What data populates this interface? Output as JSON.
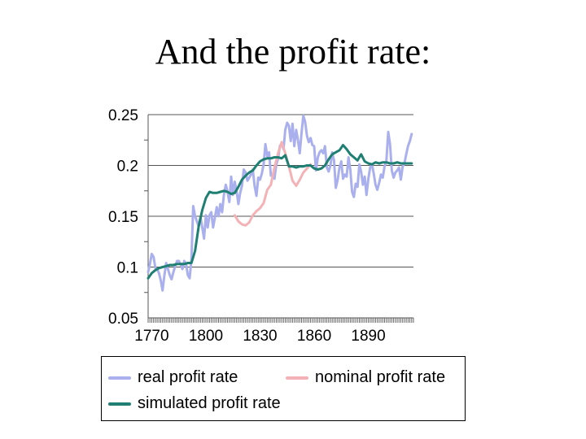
{
  "title": "And the profit rate:",
  "chart_data": {
    "type": "line",
    "title": "",
    "xlabel": "",
    "ylabel": "",
    "xlim": [
      1768,
      1915
    ],
    "ylim": [
      0.05,
      0.25
    ],
    "yticks": [
      0.05,
      0.1,
      0.15,
      0.2,
      0.25
    ],
    "ytick_labels": [
      "0.05",
      "0.1",
      "0.15",
      "0.2",
      "0.25"
    ],
    "xticks": [
      1770,
      1800,
      1830,
      1860,
      1890
    ],
    "xtick_labels": [
      "1770",
      "1800",
      "1830",
      "1860",
      "1890"
    ],
    "grid": "horizontal",
    "legend_position": "bottom",
    "series": [
      {
        "name": "real profit rate",
        "color": "#aab0ee",
        "x": [
          1768,
          1769,
          1770,
          1771,
          1772,
          1773,
          1774,
          1775,
          1776,
          1777,
          1778,
          1779,
          1780,
          1781,
          1782,
          1783,
          1784,
          1785,
          1786,
          1787,
          1788,
          1789,
          1790,
          1791,
          1792,
          1793,
          1794,
          1795,
          1796,
          1797,
          1798,
          1799,
          1800,
          1801,
          1802,
          1803,
          1804,
          1805,
          1806,
          1807,
          1808,
          1809,
          1810,
          1811,
          1812,
          1813,
          1814,
          1815,
          1816,
          1817,
          1818,
          1819,
          1820,
          1821,
          1822,
          1823,
          1824,
          1825,
          1826,
          1827,
          1828,
          1829,
          1830,
          1831,
          1832,
          1833,
          1834,
          1835,
          1836,
          1837,
          1838,
          1839,
          1840,
          1841,
          1842,
          1843,
          1844,
          1845,
          1846,
          1847,
          1848,
          1849,
          1850,
          1851,
          1852,
          1853,
          1854,
          1855,
          1856,
          1857,
          1858,
          1859,
          1860,
          1861,
          1862,
          1863,
          1864,
          1865,
          1866,
          1867,
          1868,
          1869,
          1870,
          1871,
          1872,
          1873,
          1874,
          1875,
          1876,
          1877,
          1878,
          1879,
          1880,
          1881,
          1882,
          1883,
          1884,
          1885,
          1886,
          1887,
          1888,
          1889,
          1890,
          1891,
          1892,
          1893,
          1894,
          1895,
          1896,
          1897,
          1898,
          1899,
          1900,
          1901,
          1902,
          1903,
          1904,
          1905,
          1906,
          1907,
          1908,
          1909,
          1910,
          1911,
          1912,
          1913,
          1914
        ],
        "values": [
          0.095,
          0.103,
          0.113,
          0.11,
          0.099,
          0.098,
          0.094,
          0.087,
          0.077,
          0.092,
          0.104,
          0.098,
          0.092,
          0.088,
          0.095,
          0.101,
          0.106,
          0.106,
          0.103,
          0.098,
          0.106,
          0.103,
          0.092,
          0.089,
          0.108,
          0.16,
          0.15,
          0.145,
          0.14,
          0.149,
          0.139,
          0.128,
          0.151,
          0.139,
          0.151,
          0.154,
          0.139,
          0.149,
          0.159,
          0.15,
          0.162,
          0.154,
          0.171,
          0.181,
          0.174,
          0.164,
          0.189,
          0.171,
          0.184,
          0.175,
          0.162,
          0.173,
          0.18,
          0.196,
          0.193,
          0.185,
          0.188,
          0.191,
          0.196,
          0.18,
          0.17,
          0.188,
          0.186,
          0.192,
          0.201,
          0.221,
          0.209,
          0.213,
          0.19,
          0.191,
          0.187,
          0.201,
          0.207,
          0.219,
          0.222,
          0.216,
          0.235,
          0.242,
          0.239,
          0.224,
          0.241,
          0.219,
          0.235,
          0.225,
          0.212,
          0.232,
          0.249,
          0.243,
          0.229,
          0.223,
          0.227,
          0.22,
          0.219,
          0.195,
          0.208,
          0.213,
          0.215,
          0.212,
          0.219,
          0.198,
          0.194,
          0.2,
          0.213,
          0.205,
          0.178,
          0.186,
          0.198,
          0.204,
          0.187,
          0.191,
          0.189,
          0.208,
          0.196,
          0.174,
          0.169,
          0.182,
          0.179,
          0.201,
          0.194,
          0.181,
          0.189,
          0.171,
          0.187,
          0.198,
          0.201,
          0.192,
          0.181,
          0.176,
          0.183,
          0.191,
          0.188,
          0.199,
          0.204,
          0.233,
          0.221,
          0.195,
          0.188,
          0.193,
          0.195,
          0.198,
          0.186,
          0.199,
          0.202,
          0.211,
          0.219,
          0.224,
          0.231
        ],
        "start_year": 1768
      },
      {
        "name": "nominal profit rate",
        "color": "#f4b2b6",
        "x": [
          1816,
          1818,
          1820,
          1822,
          1824,
          1826,
          1828,
          1830,
          1832,
          1834,
          1836,
          1838,
          1840,
          1842,
          1844,
          1846,
          1848,
          1850,
          1852,
          1854,
          1856,
          1858
        ],
        "values": [
          0.151,
          0.145,
          0.142,
          0.141,
          0.144,
          0.151,
          0.155,
          0.158,
          0.163,
          0.176,
          0.181,
          0.198,
          0.212,
          0.223,
          0.212,
          0.199,
          0.185,
          0.18,
          0.186,
          0.193,
          0.197,
          0.201
        ]
      },
      {
        "name": "simulated profit rate",
        "color": "#1e7f72",
        "x": [
          1768,
          1770,
          1772,
          1774,
          1776,
          1778,
          1780,
          1782,
          1784,
          1786,
          1788,
          1790,
          1792,
          1794,
          1796,
          1798,
          1800,
          1802,
          1804,
          1806,
          1808,
          1810,
          1812,
          1814,
          1816,
          1818,
          1820,
          1822,
          1824,
          1826,
          1828,
          1830,
          1832,
          1834,
          1836,
          1838,
          1840,
          1842,
          1844,
          1846,
          1848,
          1850,
          1852,
          1854,
          1856,
          1858,
          1860,
          1862,
          1864,
          1866,
          1868,
          1870,
          1872,
          1874,
          1876,
          1878,
          1880,
          1882,
          1884,
          1886,
          1888,
          1890,
          1892,
          1894,
          1896,
          1898,
          1900,
          1902,
          1904,
          1906,
          1908,
          1910,
          1912,
          1914
        ],
        "values": [
          0.089,
          0.094,
          0.097,
          0.099,
          0.1,
          0.101,
          0.102,
          0.102,
          0.103,
          0.103,
          0.103,
          0.104,
          0.104,
          0.116,
          0.14,
          0.156,
          0.168,
          0.174,
          0.173,
          0.173,
          0.174,
          0.175,
          0.174,
          0.172,
          0.173,
          0.179,
          0.186,
          0.19,
          0.193,
          0.195,
          0.2,
          0.204,
          0.206,
          0.207,
          0.207,
          0.208,
          0.208,
          0.207,
          0.21,
          0.199,
          0.199,
          0.198,
          0.199,
          0.199,
          0.2,
          0.2,
          0.197,
          0.196,
          0.197,
          0.2,
          0.206,
          0.211,
          0.213,
          0.215,
          0.22,
          0.216,
          0.211,
          0.208,
          0.205,
          0.211,
          0.204,
          0.202,
          0.201,
          0.203,
          0.202,
          0.203,
          0.203,
          0.202,
          0.202,
          0.203,
          0.202,
          0.202,
          0.202,
          0.202
        ]
      }
    ]
  }
}
